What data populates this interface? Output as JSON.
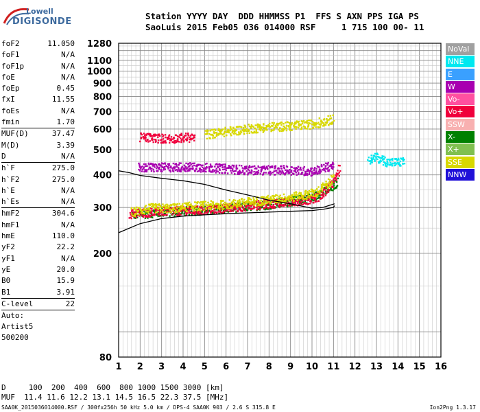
{
  "logo": {
    "line1": "Lowell",
    "line2": "DIGISONDE"
  },
  "header": {
    "line1": "Station YYYY DAY  DDD HHMMSS P1  FFS S AXN PPS IGA PS",
    "line2": "SaoLuis 2015 Feb05 036 014000 RSF     1 715 100 00- 11"
  },
  "params": [
    {
      "k": "foF2",
      "v": "11.050"
    },
    {
      "k": "foF1",
      "v": "N/A"
    },
    {
      "k": "foF1p",
      "v": "N/A"
    },
    {
      "k": "foE",
      "v": "N/A"
    },
    {
      "k": "foEp",
      "v": "0.45"
    },
    {
      "k": "fxI",
      "v": "11.55"
    },
    {
      "k": "foEs",
      "v": "N/A"
    },
    {
      "k": "fmin",
      "v": "1.70"
    },
    {
      "k": "MUF(D)",
      "v": "37.47"
    },
    {
      "k": "M(D)",
      "v": "3.39"
    },
    {
      "k": "D",
      "v": "N/A"
    },
    {
      "k": "h`F",
      "v": "275.0"
    },
    {
      "k": "h`F2",
      "v": "275.0"
    },
    {
      "k": "h`E",
      "v": "N/A"
    },
    {
      "k": "h`Es",
      "v": "N/A"
    },
    {
      "k": "hmF2",
      "v": "304.6"
    },
    {
      "k": "hmF1",
      "v": "N/A"
    },
    {
      "k": "hmE",
      "v": "110.0"
    },
    {
      "k": "yF2",
      "v": "22.2"
    },
    {
      "k": "yF1",
      "v": "N/A"
    },
    {
      "k": "yE",
      "v": "20.0"
    },
    {
      "k": "B0",
      "v": "15.9"
    },
    {
      "k": "B1",
      "v": "3.91"
    },
    {
      "k": "C-level",
      "v": "22"
    }
  ],
  "autoscale": {
    "line1": "Auto:",
    "line2": "Artist5",
    "line3": "500200"
  },
  "legend": [
    {
      "label": "NoVal",
      "color": "#a0a0a0"
    },
    {
      "label": "NNE",
      "color": "#00e8f0"
    },
    {
      "label": "E",
      "color": "#3aa0ff"
    },
    {
      "label": "W",
      "color": "#a800b0"
    },
    {
      "label": "Vo-",
      "color": "#ff50a0"
    },
    {
      "label": "Vo+",
      "color": "#f0003c"
    },
    {
      "label": "SSW",
      "color": "#f8b0b0"
    },
    {
      "label": "X-",
      "color": "#008000"
    },
    {
      "label": "X+",
      "color": "#80c050"
    },
    {
      "label": "SSE",
      "color": "#d8d800"
    },
    {
      "label": "NNW",
      "color": "#2010d8"
    }
  ],
  "footer": {
    "line1": "D     100  200  400  600  800 1000 1500 3000 [km]",
    "line2": "MUF  11.4 11.6 12.2 13.1 14.5 16.5 22.3 37.5 [MHz]",
    "line3": "SAA0K_2015036014000.RSF / 300fx256h 50 kHz 5.0 km / DPS-4 SAA0K 903 / 2.6 S 315.8 E",
    "version": "Ion2Png 1.3.17"
  },
  "chart_data": {
    "type": "scatter",
    "xlabel": "",
    "ylabel": "",
    "xlim": [
      1,
      16
    ],
    "ylim": [
      80,
      1280
    ],
    "x_ticks": [
      1,
      2,
      3,
      4,
      5,
      6,
      7,
      8,
      9,
      10,
      11,
      12,
      13,
      14,
      15,
      16
    ],
    "y_ticks": [
      80,
      200,
      300,
      400,
      500,
      600,
      700,
      800,
      900,
      1000,
      1100,
      1280
    ],
    "y_scale": "log",
    "grid": true,
    "traces": [
      {
        "name": "X- band",
        "color": "#008000",
        "points": [
          [
            1.6,
            283
          ],
          [
            2.0,
            285
          ],
          [
            3.0,
            290
          ],
          [
            4.0,
            292
          ],
          [
            5.0,
            295
          ],
          [
            6.0,
            300
          ],
          [
            7.0,
            305
          ],
          [
            8.0,
            310
          ],
          [
            9.0,
            318
          ],
          [
            10.0,
            330
          ],
          [
            10.8,
            355
          ],
          [
            11.2,
            380
          ]
        ]
      },
      {
        "name": "Vo+ lower trace",
        "color": "#f0003c",
        "points": [
          [
            1.5,
            285
          ],
          [
            2.0,
            288
          ],
          [
            3.0,
            292
          ],
          [
            4.0,
            293
          ],
          [
            5.0,
            295
          ],
          [
            6.0,
            300
          ],
          [
            7.0,
            306
          ],
          [
            8.0,
            312
          ],
          [
            9.0,
            318
          ],
          [
            10.0,
            325
          ],
          [
            10.5,
            340
          ],
          [
            11.0,
            380
          ],
          [
            11.3,
            430
          ]
        ]
      },
      {
        "name": "SSE band",
        "color": "#d8d800",
        "points": [
          [
            1.6,
            290
          ],
          [
            2.5,
            300
          ],
          [
            3.5,
            300
          ],
          [
            4.5,
            305
          ],
          [
            6.0,
            310
          ],
          [
            7.5,
            320
          ],
          [
            9.0,
            330
          ],
          [
            10.2,
            345
          ],
          [
            11.0,
            390
          ]
        ]
      },
      {
        "name": "W band 430",
        "color": "#a800b0",
        "points": [
          [
            1.9,
            430
          ],
          [
            2.5,
            430
          ],
          [
            3.0,
            430
          ],
          [
            4.0,
            432
          ],
          [
            5.0,
            430
          ],
          [
            6.0,
            425
          ],
          [
            7.0,
            420
          ],
          [
            8.0,
            420
          ],
          [
            9.0,
            420
          ],
          [
            10.0,
            415
          ],
          [
            11.0,
            440
          ]
        ]
      },
      {
        "name": "Vo+ 560",
        "color": "#f0003c",
        "points": [
          [
            2.0,
            560
          ],
          [
            2.5,
            560
          ],
          [
            3.0,
            555
          ],
          [
            3.5,
            555
          ],
          [
            4.0,
            560
          ],
          [
            4.5,
            560
          ]
        ]
      },
      {
        "name": "SSE 600",
        "color": "#d8d800",
        "points": [
          [
            5.0,
            575
          ],
          [
            6.0,
            590
          ],
          [
            7.0,
            605
          ],
          [
            8.0,
            615
          ],
          [
            9.0,
            620
          ],
          [
            10.0,
            630
          ],
          [
            11.0,
            660
          ]
        ]
      },
      {
        "name": "NNE patch",
        "color": "#00e8f0",
        "points": [
          [
            12.6,
            460
          ],
          [
            13.0,
            470
          ],
          [
            13.5,
            450
          ],
          [
            14.0,
            450
          ],
          [
            14.3,
            455
          ]
        ]
      }
    ],
    "model_curves": [
      {
        "name": "lower",
        "points": [
          [
            1.0,
            240
          ],
          [
            2.0,
            260
          ],
          [
            3.0,
            272
          ],
          [
            4.0,
            278
          ],
          [
            5.0,
            281
          ],
          [
            6.0,
            284
          ],
          [
            7.0,
            286
          ],
          [
            8.0,
            288
          ],
          [
            9.0,
            290
          ],
          [
            10.0,
            292
          ],
          [
            10.5,
            295
          ],
          [
            11.0,
            300
          ],
          [
            11.05,
            305
          ]
        ]
      },
      {
        "name": "upper",
        "points": [
          [
            1.0,
            415
          ],
          [
            1.5,
            408
          ],
          [
            2.0,
            398
          ],
          [
            3.0,
            388
          ],
          [
            4.0,
            380
          ],
          [
            5.0,
            368
          ],
          [
            6.0,
            350
          ],
          [
            7.0,
            335
          ],
          [
            8.0,
            320
          ],
          [
            9.0,
            310
          ],
          [
            10.0,
            298
          ],
          [
            10.5,
            300
          ],
          [
            11.05,
            310
          ]
        ]
      }
    ]
  }
}
